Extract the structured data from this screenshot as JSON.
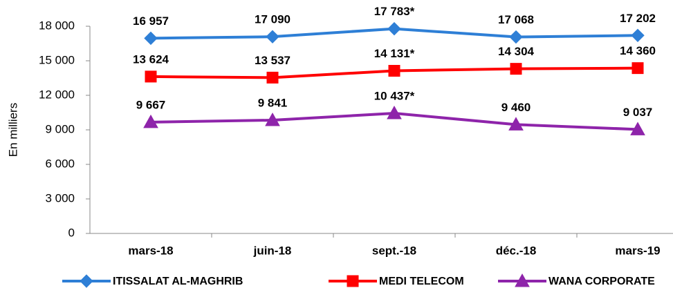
{
  "chart_data": {
    "type": "line",
    "ylabel": "En milliers",
    "categories": [
      "mars-18",
      "juin-18",
      "sept.-18",
      "déc.-18",
      "mars-19"
    ],
    "series": [
      {
        "name": "ITISSALAT AL-MAGHRIB",
        "color": "#2e7fd6",
        "marker": "diamond",
        "values": [
          16957,
          17090,
          17783,
          17068,
          17202
        ],
        "value_labels": [
          "16 957",
          "17 090",
          "17 783*",
          "17 068",
          "17 202"
        ]
      },
      {
        "name": "MEDI TELECOM",
        "color": "#ff0000",
        "marker": "square",
        "values": [
          13624,
          13537,
          14131,
          14304,
          14360
        ],
        "value_labels": [
          "13 624",
          "13 537",
          "14 131*",
          "14 304",
          "14 360"
        ]
      },
      {
        "name": "WANA CORPORATE",
        "color": "#8e24aa",
        "marker": "triangle",
        "values": [
          9667,
          9841,
          10437,
          9460,
          9037
        ],
        "value_labels": [
          "9 667",
          "9 841",
          "10 437*",
          "9 460",
          "9 037"
        ]
      }
    ],
    "ylim": [
      0,
      18000
    ],
    "yticks": [
      0,
      {
        "value": 3000,
        "label": "3 000"
      },
      {
        "value": 6000,
        "label": "6 000"
      },
      {
        "value": 9000,
        "label": "9 000"
      },
      {
        "value": 12000,
        "label": "12 000"
      },
      {
        "value": 15000,
        "label": "15 000"
      },
      {
        "value": 18000,
        "label": "18 000"
      }
    ],
    "grid": false,
    "legend": "bottom"
  }
}
